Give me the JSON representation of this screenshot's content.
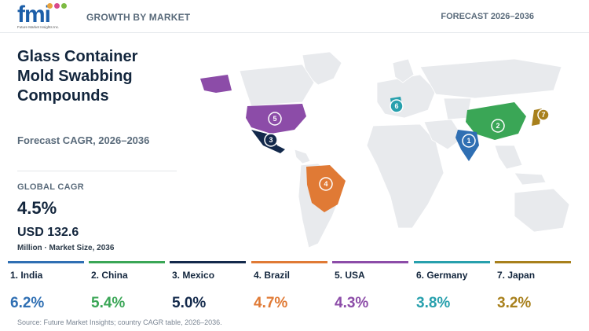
{
  "header": {
    "logo_text": "fmi",
    "logo_subtext": "Future Market Insights Inc.",
    "section_label": "GROWTH BY MARKET",
    "forecast_label": "FORECAST 2026–2036"
  },
  "title": "Glass Container Mold Swabbing Compounds",
  "subtitle": "Forecast CAGR, 2026–2036",
  "global": {
    "label": "GLOBAL CAGR",
    "value": "4.5%",
    "market_size": "USD 132.6",
    "market_note": "Million · Market Size, 2036"
  },
  "countries": [
    {
      "rank": "1",
      "name": "1. India",
      "cagr": "6.2%",
      "color": "#2f6fb3"
    },
    {
      "rank": "2",
      "name": "2. China",
      "cagr": "5.4%",
      "color": "#3aa656"
    },
    {
      "rank": "3",
      "name": "3. Mexico",
      "cagr": "5.0%",
      "color": "#13294b"
    },
    {
      "rank": "4",
      "name": "4. Brazil",
      "cagr": "4.7%",
      "color": "#e07a35"
    },
    {
      "rank": "5",
      "name": "5. USA",
      "cagr": "4.3%",
      "color": "#8c4ca8"
    },
    {
      "rank": "6",
      "name": "6. Germany",
      "cagr": "3.8%",
      "color": "#27a0ad"
    },
    {
      "rank": "7",
      "name": "7. Japan",
      "cagr": "3.2%",
      "color": "#a8801c"
    }
  ],
  "source": "Source: Future Market Insights; country CAGR table, 2026–2036."
}
